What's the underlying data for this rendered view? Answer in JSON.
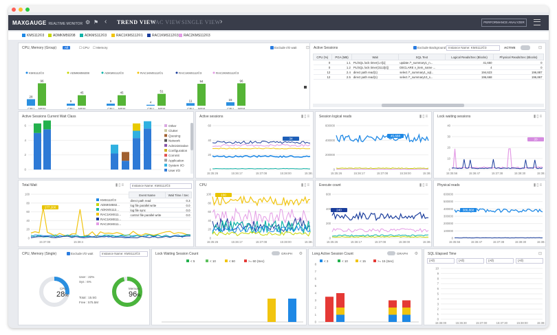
{
  "app": {
    "brand": "MAXGAUGE",
    "subtitle": "REALTIME MONITOR",
    "views": [
      "TREND VIEW",
      "RAC VIEW",
      "SINGLE VIEW"
    ],
    "perf_button": "PERFORMANCE ANALYZER"
  },
  "instances": [
    {
      "name": "KMS112©3",
      "color": "#1e88e5"
    },
    {
      "name": "ADMKM59208",
      "color": "#c6d600"
    },
    {
      "name": "ADKMS112©3",
      "color": "#10b3a7"
    },
    {
      "name": "RAC1KMS112©1",
      "color": "#f1c40f"
    },
    {
      "name": "RAC1KMS112©3",
      "color": "#1a3d9c"
    },
    {
      "name": "RAC2KMS112©3",
      "color": "#e39be5"
    }
  ],
  "cpu_memory_group": {
    "title": "CPU, Memory (Group)",
    "filter_all": "All",
    "filter_cpu": "CPU",
    "filter_memory": "Memory",
    "exclude": "Exclude I/O wait",
    "legend": [
      "KMS112©3",
      "ADMKM59208",
      "ADKMS112©3",
      "RAC1KMS112©1",
      "RAC1KMS112©3",
      "RAC2KMS112©3"
    ],
    "labels": [
      "CPU",
      "MEM"
    ],
    "cpu": [
      28,
      9,
      9,
      4,
      11,
      15
    ],
    "mem": [
      96,
      45,
      45,
      51,
      94,
      96
    ]
  },
  "active_sessions_table": {
    "title": "Active Sessions",
    "exclude": "Exclude Background",
    "instance": "Instance Name: KMS112©3",
    "status": "ACTIVE",
    "columns": [
      "CPU (%)",
      "PGA (MB)",
      "Wait",
      "SQL Text",
      "Logical Reads/Sec (Blocks)",
      "Physical Reads/Sec (Blocks)"
    ],
    "rows": [
      [
        "0",
        "1.1",
        "PL/SQL lock timer(1.0[1]",
        "update /*_summary1_n...",
        "41,650",
        "0"
      ],
      [
        "0",
        "1.2",
        "PL/SQL lock timer(3113[4])",
        "DECLARE v_item_name ...",
        "4",
        "0"
      ],
      [
        "12",
        "2.4",
        "direct path read(1)",
        "select /*_summary1_sql...",
        "194,623",
        "196,887"
      ],
      [
        "12",
        "2.5",
        "direct path read(1)",
        "select /*_summary10_s...",
        "196,668",
        "196,867"
      ]
    ]
  },
  "wait_class": {
    "title": "Active Sessions Current Wait Class",
    "yticks": [
      "0",
      "2",
      "4",
      "6"
    ],
    "legend": [
      "Other",
      "Clutter",
      "Queuing",
      "Network",
      "Administrative",
      "Configuration",
      "Commit",
      "Application",
      "System I/O",
      "User I/O"
    ],
    "legend_colors": [
      "#d9a8e0",
      "#c9c9a0",
      "#a06030",
      "#555555",
      "#8855aa",
      "#d0b020",
      "#e05050",
      "#a0a0a0",
      "#30b0e0",
      "#2e7ad6"
    ]
  },
  "active_sessions_chart": {
    "title": "Active sessions",
    "badge": "34",
    "xticks": [
      "15:35:26",
      "15:36:17",
      "15:37:08",
      "15:38:00",
      "15:38:45"
    ],
    "yticks": [
      "0",
      "20",
      "40",
      "60"
    ]
  },
  "session_logical_reads": {
    "title": "Session logical reads",
    "badge": "45,688",
    "xticks": [
      "15:35:26",
      "15:36:17",
      "15:37:08",
      "15:38:00",
      "15:38:45"
    ],
    "yticks": [
      "0",
      "200000",
      "400000",
      "600000"
    ]
  },
  "lock_waiting_sessions": {
    "title": "Lock waiting sessions",
    "badge": "20",
    "xticks": [
      "15:35:56",
      "15:36:47",
      "15:37:38",
      "15:38:30",
      "15:38:45"
    ],
    "yticks": [
      "0",
      "10",
      "20",
      "30",
      "40"
    ]
  },
  "total_wait": {
    "title": "Total Wait",
    "badge": "177,200",
    "xticks": [
      "15:37:08",
      "15:38:4"
    ],
    "yticks": [
      "0",
      "20",
      "40",
      "60",
      "80",
      "100"
    ],
    "legend": [
      "KMS112©3",
      "ADMKM592...",
      "ADKMS112...",
      "RAC1KMS11...",
      "RAC1KMS11...",
      "RAC2KMS11..."
    ]
  },
  "total_wait_table": {
    "instance": "Instance Name: KMS112©3",
    "columns": [
      "Event Name",
      "Wait Time / Sec"
    ],
    "rows": [
      [
        "direct path read",
        "0.3"
      ],
      [
        "log file parallel write",
        "0.0"
      ],
      [
        "log file sync",
        "0.0"
      ],
      [
        "control file parallel write",
        "0.0"
      ]
    ]
  },
  "cpu_chart": {
    "title": "CPU",
    "badge": "100",
    "xticks": [
      "15:35:26",
      "15:36:17",
      "15:37:08",
      "15:38:00",
      "15:38:45"
    ],
    "yticks": [
      "0",
      "20",
      "40",
      "60",
      "80",
      "100"
    ]
  },
  "execute_count": {
    "title": "Execute count",
    "badge": "240",
    "xticks": [
      "15:35:26",
      "15:36:17",
      "15:37:08",
      "15:38:00",
      "15:38:45"
    ],
    "yticks": [
      "0",
      "200",
      "400",
      "600"
    ]
  },
  "physical_reads": {
    "title": "Physical reads",
    "badge": "386,868",
    "xticks": [
      "15:35:56",
      "15:36:47",
      "15:37:38",
      "15:38:30",
      "15:38:45"
    ],
    "yticks": [
      "0",
      "100000",
      "200000",
      "300000",
      "400000",
      "500000",
      "600000"
    ]
  },
  "cpu_memory_single": {
    "title": "CPU, Memory (Single)",
    "exclude": "Exclude I/O wait",
    "instance": "Instance Name: KMS112©3",
    "cpu_label": "CPU",
    "cpu_value": "28",
    "cpu_unit": "%",
    "mem_label": "Memory",
    "mem_value": "96",
    "mem_unit": "%",
    "user": "User : 22%",
    "sys": "Sys : 6%",
    "total": "Total : 15.5G",
    "free": "Free : 575.5M"
  },
  "lock_waiting_count": {
    "title": "Lock Waiting Session Count",
    "graph": "GRAPH",
    "legend": [
      "< 5",
      "< 10",
      "< 60",
      ">= 60 (Sec)"
    ],
    "legend_colors": [
      "#23b14d",
      "#5cc05c",
      "#f1c40f",
      "#e53935"
    ]
  },
  "long_active_count": {
    "title": "Long Active Session Count",
    "graph": "GRAPH",
    "legend": [
      "< 3",
      "< 10",
      "< 15",
      ">= 15 (Sec)"
    ],
    "legend_colors": [
      "#1e88e5",
      "#23b14d",
      "#f1c40f",
      "#e53935"
    ]
  },
  "sql_elapsed": {
    "title": "SQL Elapsed Time",
    "filters": [
      "(All)",
      "(All)",
      "(All)",
      "(All)"
    ],
    "xticks": [
      "15:36:00",
      "15:36:30",
      "15:37:00",
      "15:37:30",
      "15:38:00",
      "15:38:30"
    ],
    "yticks": [
      "0",
      "1",
      "2",
      "3",
      "4",
      "5",
      "6",
      "7",
      "8",
      "9",
      "10"
    ]
  }
}
